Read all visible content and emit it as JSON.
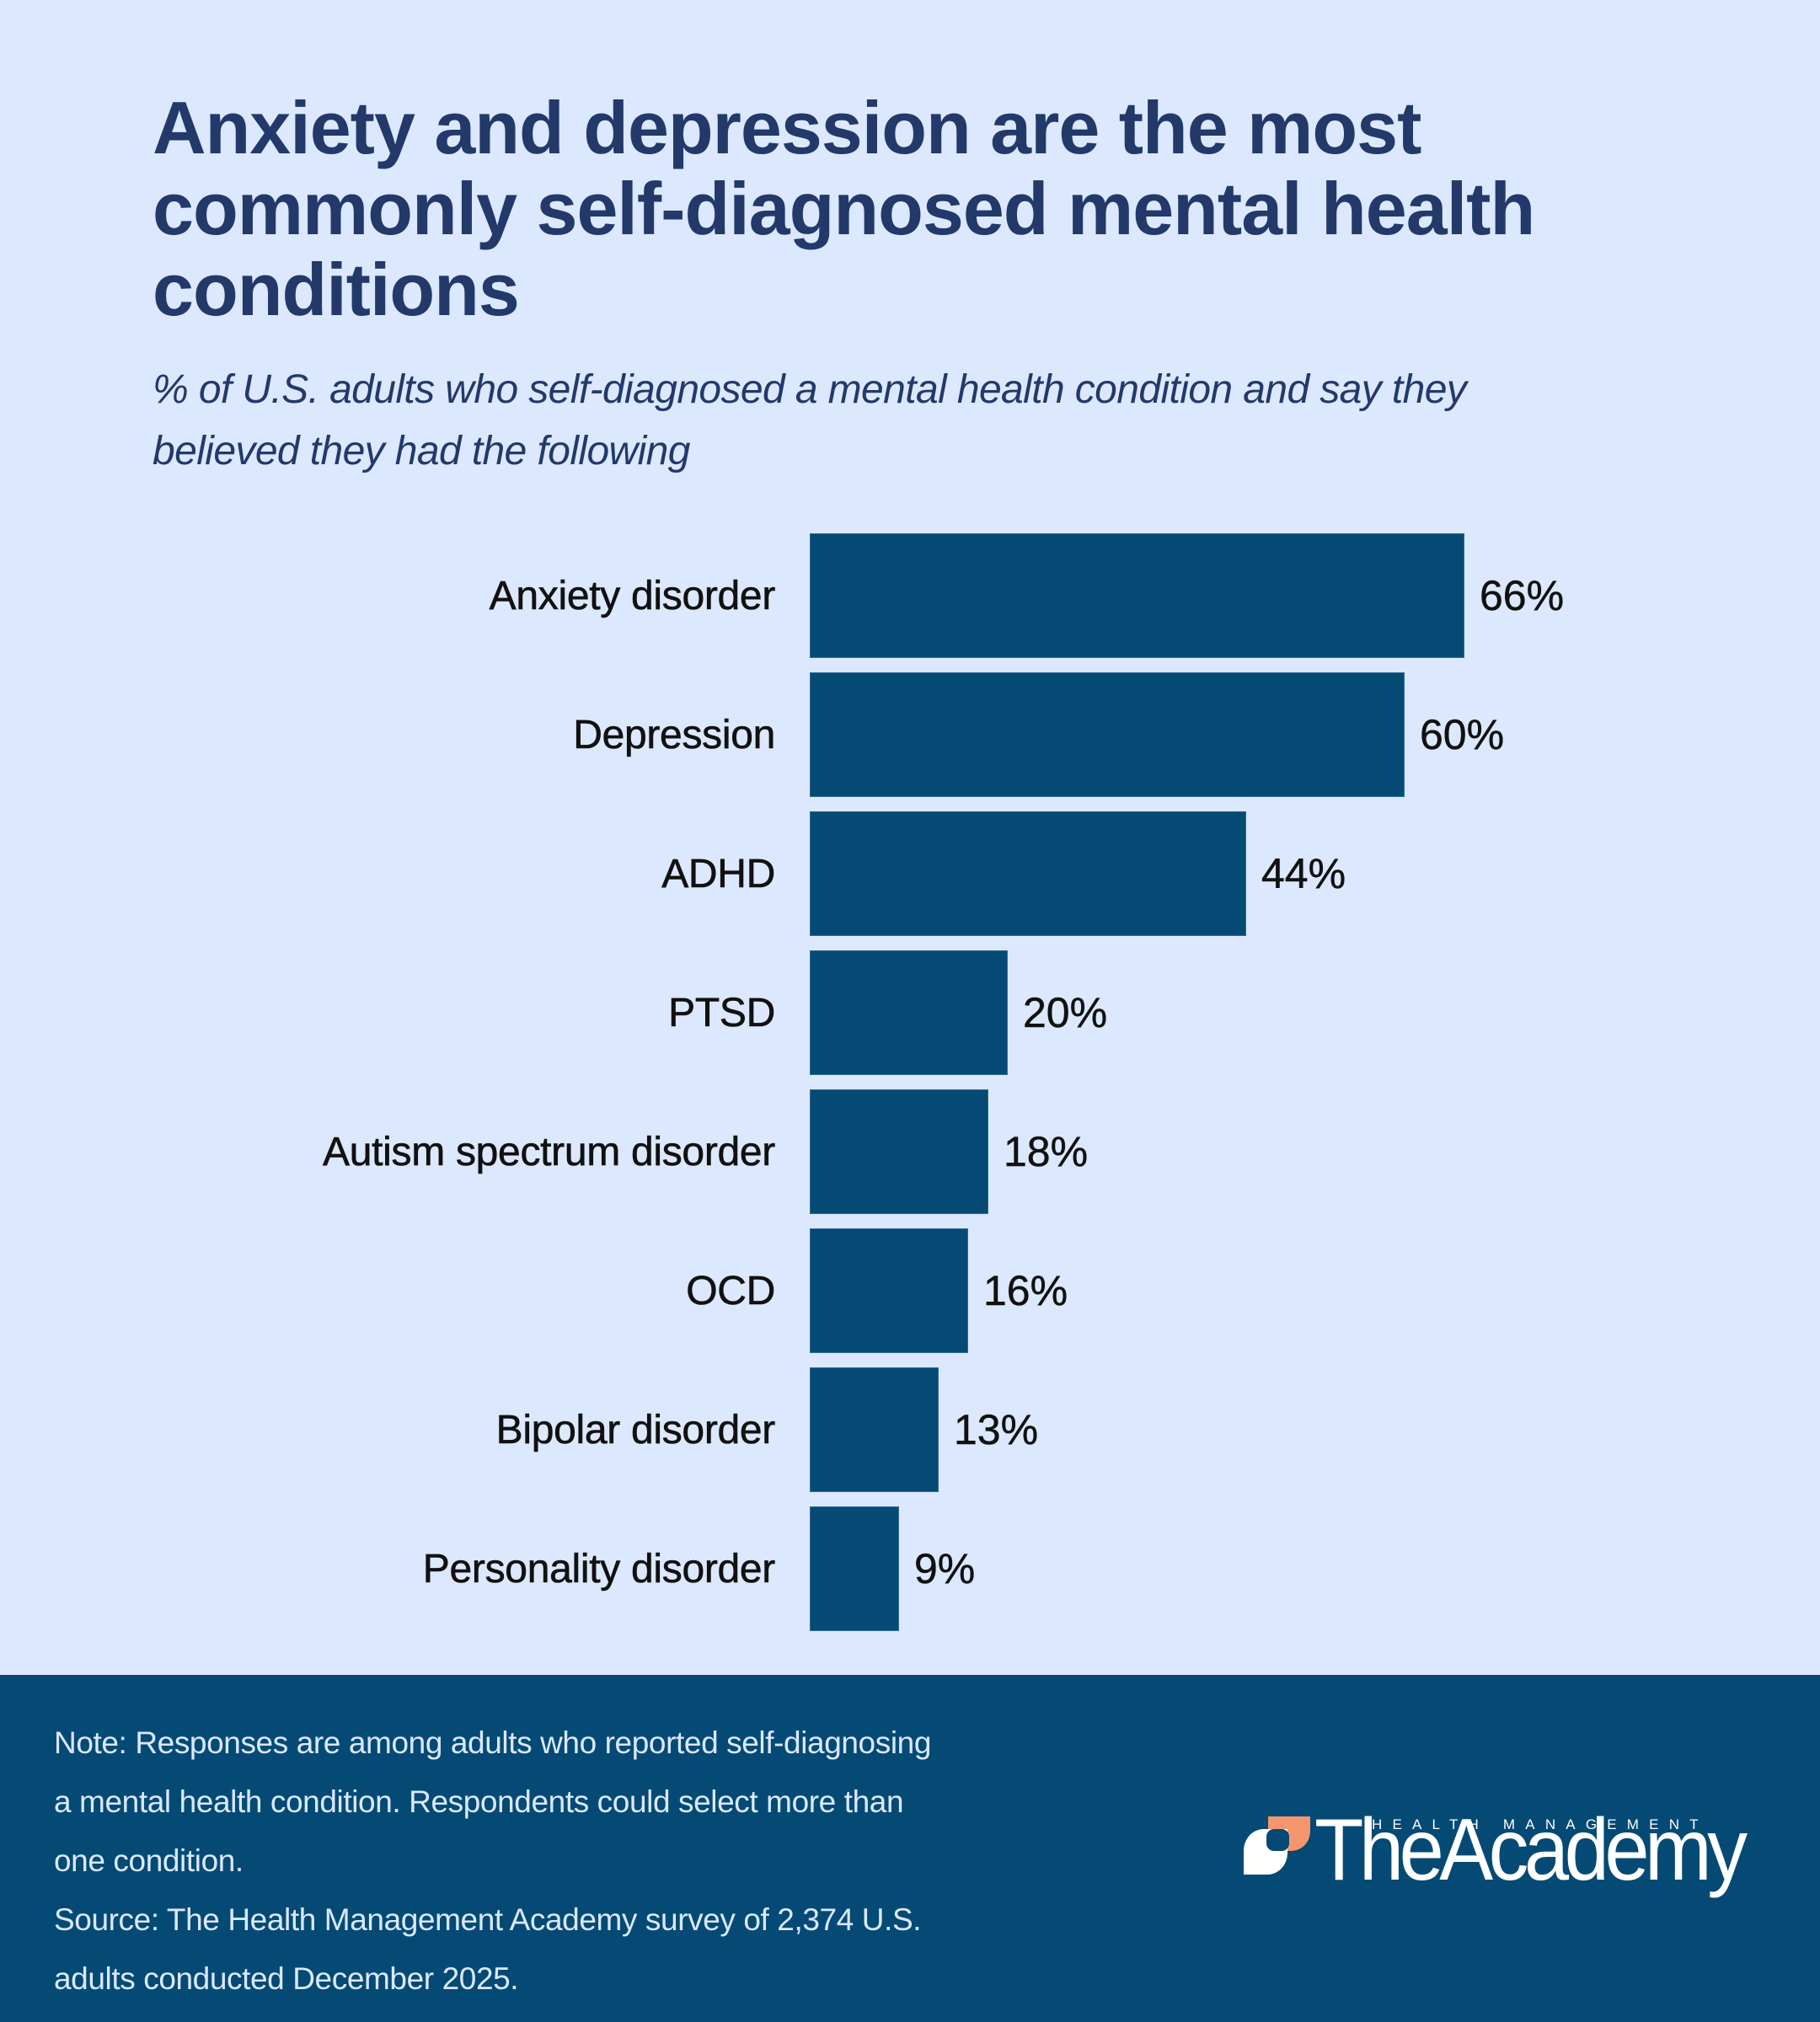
{
  "header": {
    "title_lines": [
      "Anxiety and depression are the most",
      "commonly self-diagnosed mental health",
      "conditions"
    ],
    "subtitle_lines": [
      "% of U.S. adults who self-diagnosed a mental health condition and say they",
      "believed they had the following"
    ]
  },
  "colors": {
    "background": "#dce8fd",
    "bar": "#044a74",
    "title": "#22396a",
    "footer_bg": "#044a74",
    "footer_text": "#dbe8ff",
    "logo_accent": "#f4956d"
  },
  "chart_data": {
    "type": "bar",
    "orientation": "horizontal",
    "title": "Anxiety and depression are the most commonly self-diagnosed mental health conditions",
    "subtitle": "% of U.S. adults who self-diagnosed a mental health condition and say they believed they had the following",
    "categories": [
      "Anxiety disorder",
      "Depression",
      "ADHD",
      "PTSD",
      "Autism spectrum disorder",
      "OCD",
      "Bipolar disorder",
      "Personality disorder"
    ],
    "values": [
      66,
      60,
      44,
      20,
      18,
      16,
      13,
      9
    ],
    "value_labels": [
      "66%",
      "60%",
      "44%",
      "20%",
      "18%",
      "16%",
      "13%",
      "9%"
    ],
    "unit": "%",
    "xlabel": "",
    "ylabel": "",
    "grid": false,
    "legend": null,
    "axis_visible": false
  },
  "footer": {
    "note_lines": [
      "Note: Responses are among adults who reported self-diagnosing",
      "a mental health condition. Respondents could select more than",
      "one condition."
    ],
    "source_lines": [
      "Source: The Health Management Academy survey of 2,374 U.S.",
      "adults conducted December 2025."
    ],
    "logo": {
      "tagline": "HEALTH MANAGEMENT",
      "wordmark": "TheAcademy",
      "icon": "leaf-mark-icon"
    }
  }
}
